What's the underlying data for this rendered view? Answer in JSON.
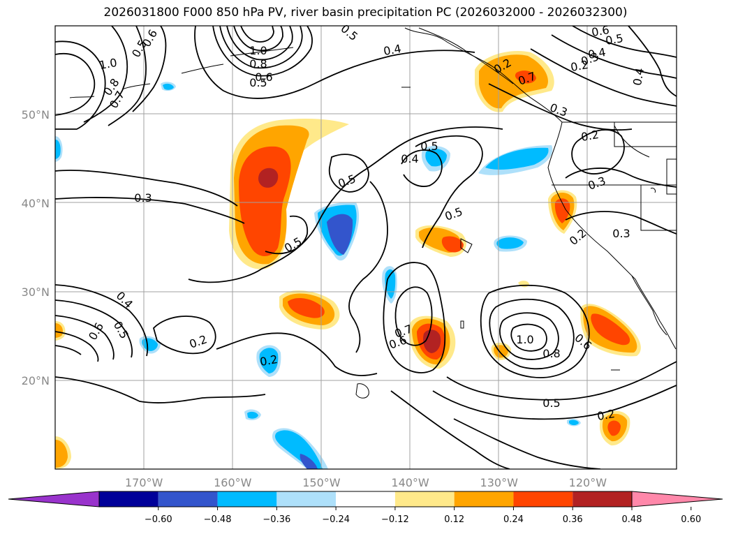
{
  "title": "2026031800 F000 850 hPa PV, river basin precipitation PC (2026032000 - 2026032300)",
  "map": {
    "region": "North Pacific / western North America",
    "lon_range": [
      -180,
      -110
    ],
    "lat_range": [
      10,
      60
    ],
    "lat_ticks": [
      {
        "value": 50,
        "label": "50°N"
      },
      {
        "value": 40,
        "label": "40°N"
      },
      {
        "value": 30,
        "label": "30°N"
      },
      {
        "value": 20,
        "label": "20°N"
      }
    ],
    "lon_ticks": [
      {
        "value": -170,
        "label": "170°W"
      },
      {
        "value": -160,
        "label": "160°W"
      },
      {
        "value": -150,
        "label": "150°W"
      },
      {
        "value": -140,
        "label": "140°W"
      },
      {
        "value": -130,
        "label": "130°W"
      },
      {
        "value": -120,
        "label": "120°W"
      }
    ],
    "grid": true,
    "contour_labels": [
      "1.0",
      "0.8",
      "0.7",
      "0.5",
      "0.6",
      "1.0",
      "0.8",
      "0.6",
      "0.5",
      "0.5",
      "0.4",
      "0.2",
      "0.7",
      "0.6",
      "0.5",
      "0.4",
      "0.3",
      "0.2",
      "0.4",
      "0.3",
      "0.2",
      "0.3",
      "0.2",
      "0.3",
      "0.5",
      "0.4",
      "0.5",
      "0.5",
      "0.5",
      "0.3",
      "0.4",
      "0.5",
      "0.6",
      "0.2",
      "0.2",
      "0.7",
      "0.6",
      "0.8",
      "1.0",
      "0.6",
      "0.5",
      "0.2"
    ]
  },
  "colorbar": {
    "ticks": [
      "−0.60",
      "−0.48",
      "−0.36",
      "−0.24",
      "−0.12",
      "0.12",
      "0.24",
      "0.36",
      "0.48",
      "0.60"
    ],
    "colors": [
      "#9933cc",
      "#000099",
      "#3355cc",
      "#00bbff",
      "#aee0fa",
      "#ffffff",
      "#ffe98a",
      "#ffa500",
      "#ff4500",
      "#b22222",
      "#ff88aa"
    ],
    "extend": "both"
  }
}
